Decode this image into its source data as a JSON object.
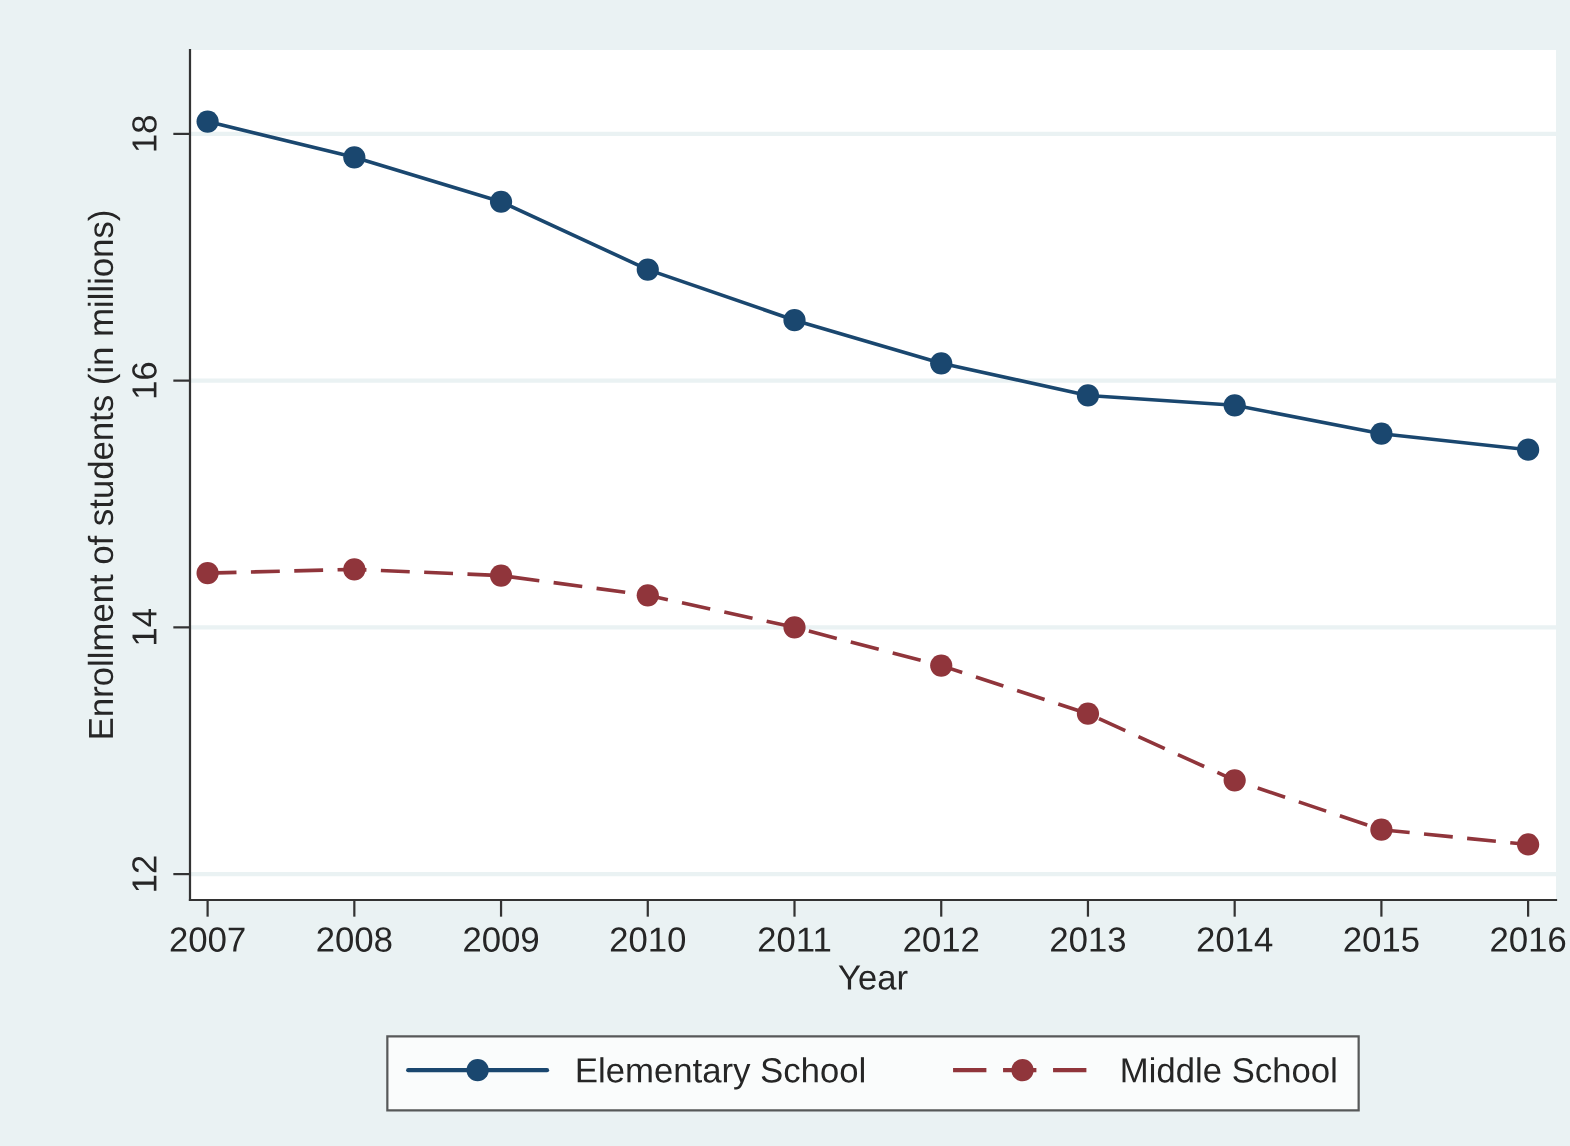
{
  "chart_data": {
    "type": "line",
    "xlabel": "Year",
    "ylabel": "Enrollment of students (in millions)",
    "x": [
      2007,
      2008,
      2009,
      2010,
      2011,
      2012,
      2013,
      2014,
      2015,
      2016
    ],
    "series": [
      {
        "name": "Elementary School",
        "color": "#1a476f",
        "line_style": "solid",
        "values": [
          18.1,
          17.81,
          17.45,
          16.9,
          16.49,
          16.14,
          15.88,
          15.8,
          15.57,
          15.44
        ]
      },
      {
        "name": "Middle School",
        "color": "#90353b",
        "line_style": "dashed",
        "values": [
          14.44,
          14.47,
          14.42,
          14.26,
          14.0,
          13.69,
          13.3,
          12.76,
          12.36,
          12.24
        ]
      }
    ],
    "xlim": [
      2006.88,
      2016.19
    ],
    "xticks": [
      2007,
      2008,
      2009,
      2010,
      2011,
      2012,
      2013,
      2014,
      2015,
      2016
    ],
    "ylim": [
      11.79,
      18.68
    ],
    "yticks": [
      12,
      14,
      16,
      18
    ],
    "grid": "y",
    "legend": "bottom",
    "marker": "circle"
  }
}
